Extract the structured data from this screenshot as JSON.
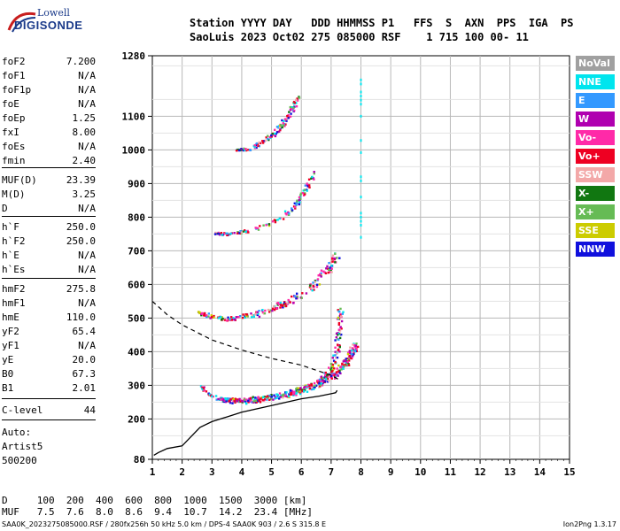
{
  "logo": {
    "line1": "Lowell",
    "line2": "DIGISONDE"
  },
  "header": {
    "line1": "Station YYYY DAY   DDD HHMMSS P1   FFS  S  AXN  PPS  IGA  PS",
    "line2": "SaoLuis 2023 Oct02 275 085000 RSF    1 715 100 00- 11"
  },
  "params": [
    {
      "name": "foF2",
      "value": "7.200"
    },
    {
      "name": "foF1",
      "value": "N/A"
    },
    {
      "name": "foF1p",
      "value": "N/A"
    },
    {
      "name": "foE",
      "value": "N/A"
    },
    {
      "name": "foEp",
      "value": "1.25"
    },
    {
      "name": "fxI",
      "value": "8.00"
    },
    {
      "name": "foEs",
      "value": "N/A"
    },
    {
      "name": "fmin",
      "value": "2.40"
    },
    {
      "name": "MUF(D)",
      "value": "23.39"
    },
    {
      "name": "M(D)",
      "value": "3.25"
    },
    {
      "name": "D",
      "value": "N/A"
    },
    {
      "name": "h`F",
      "value": "250.0"
    },
    {
      "name": "h`F2",
      "value": "250.0"
    },
    {
      "name": "h`E",
      "value": "N/A"
    },
    {
      "name": "h`Es",
      "value": "N/A"
    },
    {
      "name": "hmF2",
      "value": "275.8"
    },
    {
      "name": "hmF1",
      "value": "N/A"
    },
    {
      "name": "hmE",
      "value": "110.0"
    },
    {
      "name": "yF2",
      "value": "65.4"
    },
    {
      "name": "yF1",
      "value": "N/A"
    },
    {
      "name": "yE",
      "value": "20.0"
    },
    {
      "name": "B0",
      "value": "67.3"
    },
    {
      "name": "B1",
      "value": "2.01"
    },
    {
      "name": "C-level",
      "value": "44"
    }
  ],
  "autoscale": {
    "line1": "Auto:",
    "line2": "Artist5",
    "line3": "500200"
  },
  "legend": [
    {
      "label": "NoVal",
      "color": "#a0a0a0"
    },
    {
      "label": "NNE",
      "color": "#00e5ee"
    },
    {
      "label": "E",
      "color": "#3399ff"
    },
    {
      "label": "W",
      "color": "#b000b0"
    },
    {
      "label": "Vo-",
      "color": "#ff2aa8"
    },
    {
      "label": "Vo+",
      "color": "#ee0022"
    },
    {
      "label": "SSW",
      "color": "#f3a8a8"
    },
    {
      "label": "X-",
      "color": "#117711"
    },
    {
      "label": "X+",
      "color": "#66bb55"
    },
    {
      "label": "SSE",
      "color": "#cccc00"
    },
    {
      "label": "NNW",
      "color": "#1010dd"
    }
  ],
  "muf_table": {
    "d_line": "D     100  200  400  600  800  1000  1500  3000 [km]",
    "muf_line": "MUF   7.5  7.6  8.0  8.6  9.4  10.7  14.2  23.4 [MHz]"
  },
  "footer": {
    "left": "SAA0K_2023275085000.RSF / 280fx256h 50 kHz 5.0 km / DPS-4 SAA0K 903 / 2.6 S 315.8 E",
    "right": "Ion2Png 1.3.17"
  },
  "chart_data": {
    "type": "scatter",
    "xlim": [
      1,
      15
    ],
    "ylim": [
      80,
      1280
    ],
    "x_ticks": [
      1,
      2,
      3,
      4,
      5,
      6,
      7,
      8,
      9,
      10,
      11,
      12,
      13,
      14,
      15
    ],
    "y_ticks": [
      80,
      200,
      300,
      400,
      500,
      600,
      700,
      800,
      900,
      1000,
      1100,
      1280
    ],
    "grid": true,
    "legend_placement": "right",
    "traces": [
      {
        "name": "O-trace 1st hop",
        "points": [
          [
            2.6,
            300
          ],
          [
            3.0,
            268
          ],
          [
            3.5,
            256
          ],
          [
            4.0,
            254
          ],
          [
            4.5,
            258
          ],
          [
            5.0,
            265
          ],
          [
            5.5,
            275
          ],
          [
            6.0,
            290
          ],
          [
            6.5,
            305
          ],
          [
            6.8,
            325
          ],
          [
            7.0,
            350
          ],
          [
            7.1,
            380
          ],
          [
            7.2,
            430
          ],
          [
            7.25,
            480
          ],
          [
            7.3,
            530
          ]
        ]
      },
      {
        "name": "X-trace 1st hop",
        "points": [
          [
            3.3,
            262
          ],
          [
            4.0,
            258
          ],
          [
            5.0,
            268
          ],
          [
            6.0,
            290
          ],
          [
            6.6,
            310
          ],
          [
            7.0,
            330
          ],
          [
            7.4,
            360
          ],
          [
            7.6,
            390
          ],
          [
            7.8,
            420
          ]
        ]
      },
      {
        "name": "2nd hop",
        "points": [
          [
            2.5,
            520
          ],
          [
            3.0,
            505
          ],
          [
            3.5,
            500
          ],
          [
            4.0,
            505
          ],
          [
            4.5,
            515
          ],
          [
            5.0,
            530
          ],
          [
            5.5,
            550
          ],
          [
            6.0,
            575
          ],
          [
            6.5,
            610
          ],
          [
            6.8,
            640
          ],
          [
            7.0,
            660
          ],
          [
            7.2,
            700
          ]
        ]
      },
      {
        "name": "3rd hop",
        "points": [
          [
            3.1,
            755
          ],
          [
            3.5,
            752
          ],
          [
            4.0,
            760
          ],
          [
            4.5,
            770
          ],
          [
            5.0,
            785
          ],
          [
            5.5,
            815
          ],
          [
            5.8,
            840
          ],
          [
            6.0,
            870
          ],
          [
            6.2,
            900
          ],
          [
            6.4,
            935
          ]
        ]
      },
      {
        "name": "4th hop",
        "points": [
          [
            3.8,
            1002
          ],
          [
            4.2,
            1005
          ],
          [
            4.6,
            1020
          ],
          [
            5.0,
            1045
          ],
          [
            5.3,
            1075
          ],
          [
            5.5,
            1100
          ],
          [
            5.7,
            1130
          ],
          [
            5.9,
            1165
          ]
        ]
      }
    ],
    "profile": [
      [
        1.05,
        92
      ],
      [
        1.2,
        100
      ],
      [
        1.5,
        112
      ],
      [
        2.0,
        120
      ],
      [
        2.6,
        175
      ],
      [
        3.0,
        192
      ],
      [
        4.0,
        220
      ],
      [
        5.0,
        240
      ],
      [
        6.0,
        260
      ],
      [
        6.6,
        268
      ],
      [
        7.0,
        275
      ],
      [
        7.15,
        278
      ],
      [
        7.2,
        285
      ]
    ],
    "dashed_curve": [
      [
        1.0,
        550
      ],
      [
        1.5,
        510
      ],
      [
        2.0,
        480
      ],
      [
        3.0,
        435
      ],
      [
        4.0,
        405
      ],
      [
        5.0,
        380
      ],
      [
        6.0,
        360
      ],
      [
        6.5,
        345
      ],
      [
        7.0,
        330
      ],
      [
        7.3,
        315
      ]
    ]
  }
}
